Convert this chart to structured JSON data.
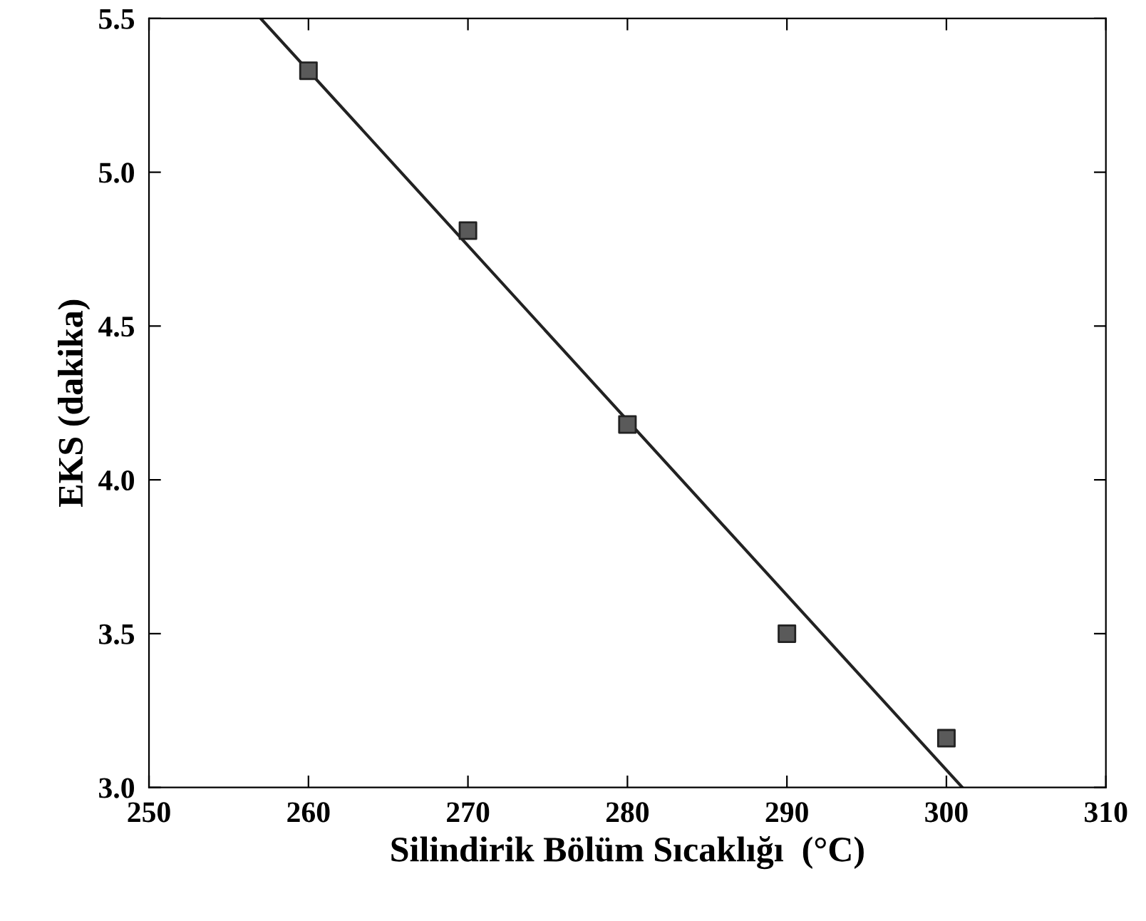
{
  "chart_data": {
    "type": "scatter",
    "xlabel": "Silindirik Bölüm Sıcaklığı  (°C)",
    "ylabel": "EKS (dakika)",
    "x": [
      260,
      270,
      280,
      290,
      300
    ],
    "series": [
      {
        "color": "#5a5a5a",
        "marker": "square",
        "values": [
          5.33,
          4.81,
          4.18,
          3.5,
          3.16
        ]
      },
      {
        "type": "line",
        "color": "#222222",
        "marker": "none",
        "x": [
          257,
          301
        ],
        "values": [
          5.5,
          3.0
        ]
      }
    ],
    "xlim": [
      250,
      310
    ],
    "xticks": [
      250,
      260,
      270,
      280,
      290,
      300,
      310
    ],
    "ylim": [
      3.0,
      5.5
    ],
    "yticks": [
      {
        "value": 3,
        "label": "3.0"
      },
      {
        "value": 3.5,
        "label": "3.5"
      },
      {
        "value": 4,
        "label": "4.0"
      },
      {
        "value": 4.5,
        "label": "4.5"
      },
      {
        "value": 5,
        "label": "5.0"
      },
      {
        "value": 5.5,
        "label": "5.5"
      }
    ],
    "grid": false,
    "legend": false
  }
}
